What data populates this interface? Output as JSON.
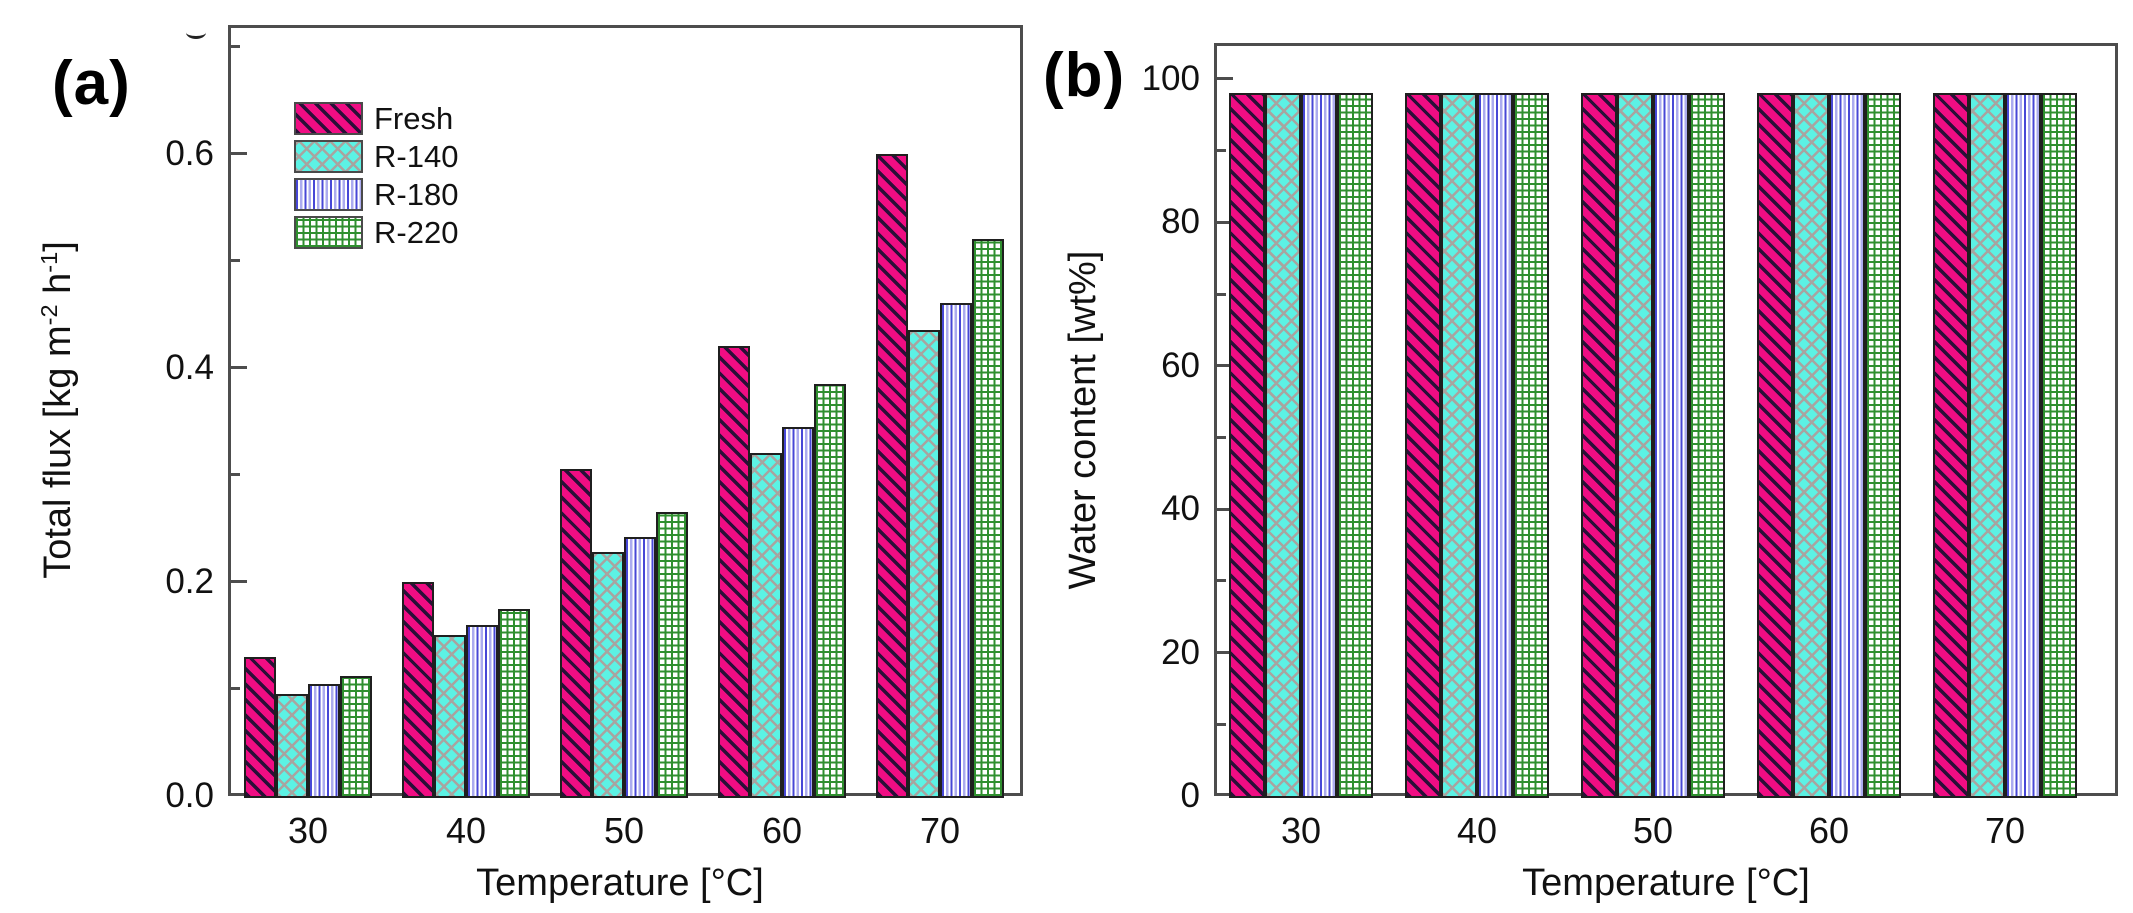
{
  "colors": {
    "pink": "#F00D83",
    "pink_stripe": "#2A0F38",
    "cyan": "#5CF2E4",
    "lattice_gray": "#A8A4A0",
    "blue_dark": "#4747D6",
    "blue_light": "#ABABEF",
    "green": "#2F8F2F",
    "axis_gray": "#4d4d4d",
    "bar_outline": "#1f1f1f"
  },
  "chart_data": [
    {
      "id": "a",
      "type": "bar",
      "panel_label": "(a)",
      "xlabel": "Temperature [°C]",
      "ylabel": "Total flux [kg m-2 h-1]",
      "ylabel_parts": [
        {
          "text": "Total flux [kg m"
        },
        {
          "sup": "-2"
        },
        {
          "text": " h"
        },
        {
          "sup": "-1"
        },
        {
          "text": "]"
        }
      ],
      "categories": [
        "30",
        "40",
        "50",
        "60",
        "70"
      ],
      "series": [
        {
          "name": "Fresh",
          "pattern_key": "fresh",
          "values": [
            0.13,
            0.2,
            0.305,
            0.42,
            0.6
          ]
        },
        {
          "name": "R-140",
          "pattern_key": "r140",
          "values": [
            0.095,
            0.15,
            0.228,
            0.32,
            0.435
          ]
        },
        {
          "name": "R-180",
          "pattern_key": "r180",
          "values": [
            0.105,
            0.16,
            0.242,
            0.345,
            0.46
          ]
        },
        {
          "name": "R-220",
          "pattern_key": "r220",
          "values": [
            0.112,
            0.175,
            0.265,
            0.385,
            0.52
          ]
        }
      ],
      "ylim": [
        0,
        0.72
      ],
      "yticks": [
        0.0,
        0.2,
        0.4,
        0.6
      ],
      "ytick_labels": [
        "0.0",
        "0.2",
        "0.4",
        "0.6"
      ],
      "minor_yticks": [
        0.1,
        0.3,
        0.5,
        0.7
      ],
      "grid": false,
      "legend_position": "upper-left-inside",
      "legend": {
        "items": [
          {
            "label": "Fresh",
            "pattern_key": "fresh"
          },
          {
            "label": "R-140",
            "pattern_key": "r140"
          },
          {
            "label": "R-180",
            "pattern_key": "r180"
          },
          {
            "label": "R-220",
            "pattern_key": "r220"
          }
        ]
      }
    },
    {
      "id": "b",
      "type": "bar",
      "panel_label": "(b)",
      "xlabel": "Temperature [°C]",
      "ylabel": "Water content [wt%]",
      "ylabel_parts": [
        {
          "text": "Water content [wt%]"
        }
      ],
      "categories": [
        "30",
        "40",
        "50",
        "60",
        "70"
      ],
      "series": [
        {
          "name": "Fresh",
          "pattern_key": "fresh",
          "values": [
            98,
            98,
            98,
            98,
            98
          ]
        },
        {
          "name": "R-140",
          "pattern_key": "r140",
          "values": [
            98,
            98,
            98,
            98,
            98
          ]
        },
        {
          "name": "R-180",
          "pattern_key": "r180",
          "values": [
            98,
            98,
            98,
            98,
            98
          ]
        },
        {
          "name": "R-220",
          "pattern_key": "r220",
          "values": [
            98,
            98,
            98,
            98,
            98
          ]
        }
      ],
      "ylim": [
        0,
        105
      ],
      "yticks": [
        0,
        20,
        40,
        60,
        80,
        100
      ],
      "ytick_labels": [
        "0",
        "20",
        "40",
        "60",
        "80",
        "100"
      ],
      "minor_yticks": [
        10,
        30,
        50,
        70,
        90
      ],
      "grid": false,
      "legend_position": "none"
    }
  ]
}
